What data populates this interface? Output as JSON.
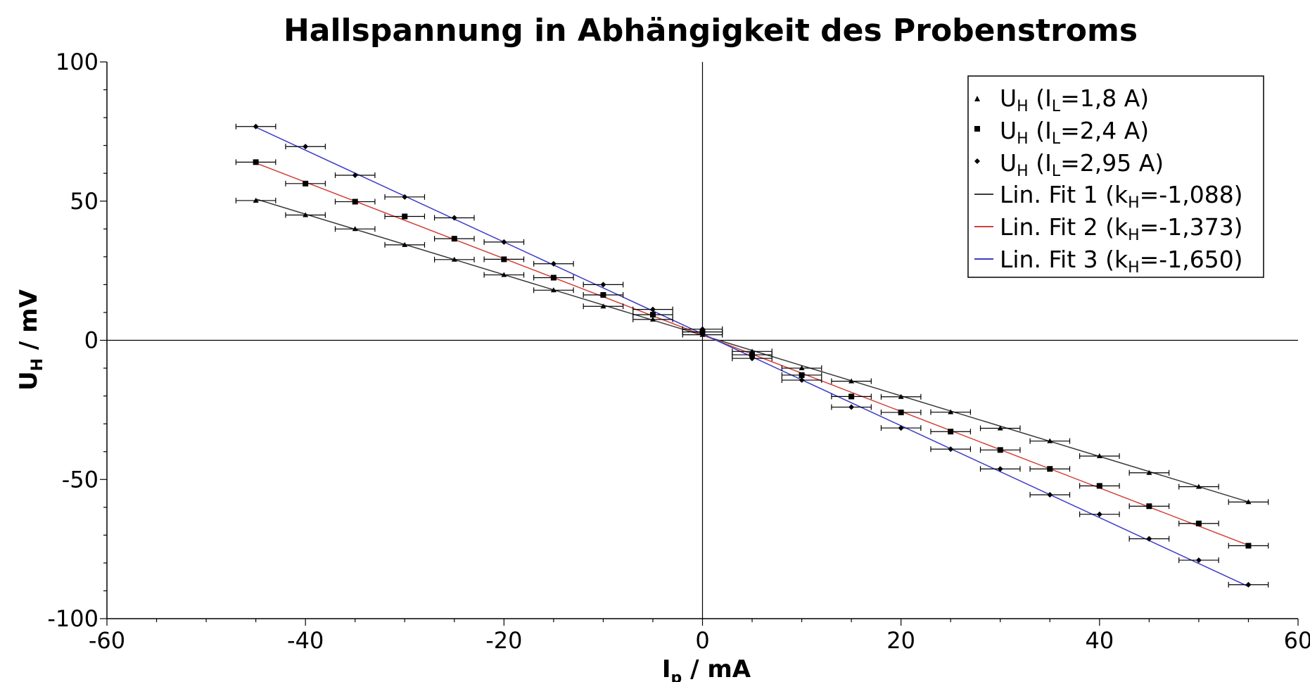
{
  "chart_data": {
    "type": "scatter",
    "title": "Hallspannung in Abhängigkeit des Probenstroms",
    "xlabel": {
      "main": "I",
      "sub": "p",
      "unit": " / mA"
    },
    "ylabel": {
      "main": "U",
      "sub": "H",
      "unit": " / mV"
    },
    "xlim": [
      -60,
      60
    ],
    "ylim": [
      -100,
      100
    ],
    "x_ticks": [
      -60,
      -40,
      -20,
      0,
      20,
      40,
      60
    ],
    "y_ticks": [
      -100,
      -50,
      0,
      50,
      100
    ],
    "x_error": 2,
    "legend_position": "top-right",
    "series": [
      {
        "marker": "triangle",
        "color": "#000000",
        "legend": {
          "main": "U",
          "sub": "H",
          "rest_pre": " (I",
          "rest_sub": "L",
          "rest_post": "=1,8 A)"
        },
        "x": [
          -45,
          -40,
          -35,
          -30,
          -25,
          -20,
          -15,
          -10,
          -5,
          0,
          5,
          10,
          15,
          20,
          25,
          30,
          35,
          40,
          45,
          50,
          55
        ],
        "y": [
          50.2,
          45.0,
          40.0,
          34.3,
          29.0,
          23.5,
          18.0,
          12.2,
          7.5,
          2.0,
          -4.0,
          -10.0,
          -14.7,
          -20.3,
          -25.8,
          -31.6,
          -36.2,
          -41.6,
          -47.6,
          -52.6,
          -58.1
        ]
      },
      {
        "marker": "square",
        "color": "#000000",
        "legend": {
          "main": "U",
          "sub": "H",
          "rest_pre": " (I",
          "rest_sub": "L",
          "rest_post": "=2,4 A)"
        },
        "x": [
          -45,
          -40,
          -35,
          -30,
          -25,
          -20,
          -15,
          -10,
          -5,
          0,
          5,
          10,
          15,
          20,
          25,
          30,
          35,
          40,
          45,
          50,
          55
        ],
        "y": [
          64.0,
          56.3,
          49.8,
          44.5,
          36.5,
          29.1,
          22.5,
          16.3,
          9.2,
          3.0,
          -5.2,
          -12.5,
          -20.2,
          -25.9,
          -32.8,
          -39.4,
          -46.2,
          -52.3,
          -59.6,
          -65.8,
          -73.8
        ]
      },
      {
        "marker": "diamond",
        "color": "#000000",
        "legend": {
          "main": "U",
          "sub": "H",
          "rest_pre": " (I",
          "rest_sub": "L",
          "rest_post": "=2,95 A)"
        },
        "x": [
          -45,
          -40,
          -35,
          -30,
          -25,
          -20,
          -15,
          -10,
          -5,
          0,
          5,
          10,
          15,
          20,
          25,
          30,
          35,
          40,
          45,
          50,
          55
        ],
        "y": [
          76.8,
          69.6,
          59.3,
          51.5,
          44.0,
          35.3,
          27.5,
          20.0,
          11.1,
          4.0,
          -6.5,
          -14.3,
          -24.0,
          -31.5,
          -39.1,
          -46.2,
          -55.5,
          -62.5,
          -71.3,
          -79.0,
          -87.8
        ]
      },
      {
        "type": "line",
        "color": "#3a3a3a",
        "slope": -1.088,
        "intercept": 1.8,
        "x_range": [
          -45,
          55
        ],
        "legend": {
          "pre": "Lin. Fit 1 (k",
          "sub": "H",
          "post": "=-1,088)"
        }
      },
      {
        "type": "line",
        "color": "#d0413a",
        "slope": -1.373,
        "intercept": 1.9,
        "x_range": [
          -45,
          55
        ],
        "legend": {
          "pre": "Lin. Fit 2 (k",
          "sub": "H",
          "post": "=-1,373)"
        }
      },
      {
        "type": "line",
        "color": "#3b3bc8",
        "slope": -1.65,
        "intercept": 2.3,
        "x_range": [
          -45,
          55
        ],
        "legend": {
          "pre": "Lin. Fit 3 (k",
          "sub": "H",
          "post": "=-1,650)"
        }
      }
    ]
  }
}
